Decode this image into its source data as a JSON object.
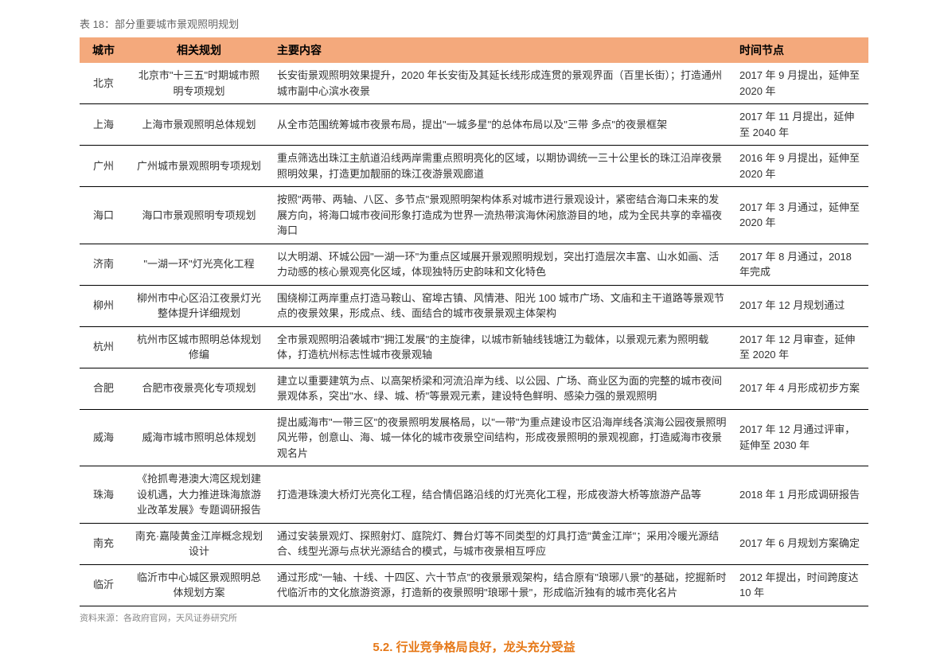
{
  "title": "表 18：部分重要城市景观照明规划",
  "columns": [
    "城市",
    "相关规划",
    "主要内容",
    "时间节点"
  ],
  "rows": [
    {
      "city": "北京",
      "plan": "北京市\"十三五\"时期城市照明专项规划",
      "content": "长安街景观照明效果提升，2020 年长安街及其延长线形成连贯的景观界面（百里长街）；打造通州城市副中心滨水夜景",
      "time": "2017 年 9 月提出，延伸至 2020 年"
    },
    {
      "city": "上海",
      "plan": "上海市景观照明总体规划",
      "content": "从全市范围统筹城市夜景布局，提出\"一城多星\"的总体布局以及\"三带 多点\"的夜景框架",
      "time": "2017 年 11 月提出，延伸至 2040 年"
    },
    {
      "city": "广州",
      "plan": "广州城市景观照明专项规划",
      "content": "重点筛选出珠江主航道沿线两岸需重点照明亮化的区域，以期协调统一三十公里长的珠江沿岸夜景照明效果，打造更加靓丽的珠江夜游景观廊道",
      "time": "2016 年 9 月提出，延伸至 2020 年"
    },
    {
      "city": "海口",
      "plan": "海口市景观照明专项规划",
      "content": "按照\"两带、两轴、八区、多节点\"景观照明架构体系对城市进行景观设计，紧密结合海口未来的发展方向，将海口城市夜间形象打造成为世界一流热带滨海休闲旅游目的地，成为全民共享的幸福夜海口",
      "time": "2017 年 3 月通过，延伸至 2020 年"
    },
    {
      "city": "济南",
      "plan": "\"一湖一环\"灯光亮化工程",
      "content": "以大明湖、环城公园\"一湖一环\"为重点区域展开景观照明规划，突出打造层次丰富、山水如画、活力动感的核心景观亮化区域，体现独特历史韵味和文化特色",
      "time": "2017 年 8 月通过，2018 年完成"
    },
    {
      "city": "柳州",
      "plan": "柳州市中心区沿江夜景灯光整体提升详细规划",
      "content": "围绕柳江两岸重点打造马鞍山、窑埠古镇、风情港、阳光 100 城市广场、文庙和主干道路等景观节点的夜景效果，形成点、线、面结合的城市夜景景观主体架构",
      "time": "2017 年 12 月规划通过"
    },
    {
      "city": "杭州",
      "plan": "杭州市区城市照明总体规划修编",
      "content": "全市景观照明沿袭城市\"拥江发展\"的主旋律，以城市新轴线钱塘江为载体，以景观元素为照明载体，打造杭州标志性城市夜景观轴",
      "time": "2017 年 12 月审查，延伸至 2020 年"
    },
    {
      "city": "合肥",
      "plan": "合肥市夜景亮化专项规划",
      "content": "建立以重要建筑为点、以高架桥梁和河流沿岸为线、以公园、广场、商业区为面的完整的城市夜间景观体系，突出\"水、绿、城、桥\"等景观元素，建设特色鲜明、感染力强的景观照明",
      "time": "2017 年 4 月形成初步方案"
    },
    {
      "city": "威海",
      "plan": "威海市城市照明总体规划",
      "content": "提出威海市\"一带三区\"的夜景照明发展格局，以\"一带\"为重点建设市区沿海岸线各滨海公园夜景照明风光带，创意山、海、城一体化的城市夜景空间结构，形成夜景照明的景观视廊，打造威海市夜景观名片",
      "time": "2017 年 12 月通过评审，延伸至 2030 年"
    },
    {
      "city": "珠海",
      "plan": "《抢抓粤港澳大湾区规划建设机遇，大力推进珠海旅游业改革发展》专题调研报告",
      "content": "打造港珠澳大桥灯光亮化工程，结合情侣路沿线的灯光亮化工程，形成夜游大桥等旅游产品等",
      "time": "2018 年 1 月形成调研报告"
    },
    {
      "city": "南充",
      "plan": "南充·嘉陵黄金江岸概念规划设计",
      "content": "通过安装景观灯、探照射灯、庭院灯、舞台灯等不同类型的灯具打造\"黄金江岸\"；采用冷暖光源结合、线型光源与点状光源结合的模式，与城市夜景相互呼应",
      "time": "2017 年 6 月规划方案确定"
    },
    {
      "city": "临沂",
      "plan": "临沂市中心城区景观照明总体规划方案",
      "content": "通过形成\"一轴、十线、十四区、六十节点\"的夜景景观架构，结合原有\"琅琊八景\"的基础，挖掘新时代临沂市的文化旅游资源，打造新的夜景照明\"琅琊十景\"，形成临沂独有的城市亮化名片",
      "time": "2012 年提出，时间跨度达 10 年"
    }
  ],
  "source": "资料来源：各政府官网，天风证券研究所",
  "footer": {
    "prefix": "5.2.",
    "text": "行业竞争格局良好，龙头充分受益"
  },
  "colors": {
    "header_bg": "#f4a97c",
    "border": "#000000",
    "accent": "#e67817",
    "text": "#333333",
    "muted": "#888888"
  }
}
